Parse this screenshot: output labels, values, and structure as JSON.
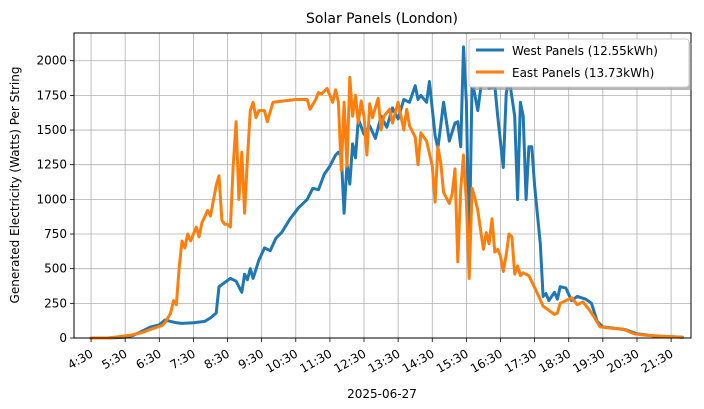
{
  "chart_data": {
    "type": "line",
    "title": "Solar Panels (London)",
    "xlabel": "2025-06-27",
    "ylabel": "Generated Electricity (Watts) Per String",
    "x_axis": {
      "kind": "time",
      "range": [
        "04:00",
        "22:05"
      ],
      "tick_labels": [
        "4:30",
        "5:30",
        "6:30",
        "7:30",
        "8:30",
        "9:30",
        "10:30",
        "11:30",
        "12:30",
        "13:30",
        "14:30",
        "15:30",
        "16:30",
        "17:30",
        "18:30",
        "19:30",
        "20:30",
        "21:30"
      ]
    },
    "ylim": [
      0,
      2200
    ],
    "y_ticks": [
      0,
      250,
      500,
      750,
      1000,
      1250,
      1500,
      1750,
      2000
    ],
    "grid": true,
    "legend_position": "top-right",
    "series": [
      {
        "name": "West Panels (12.55kWh)",
        "color": "#1f77b4",
        "points": [
          [
            "04:30",
            0
          ],
          [
            "05:00",
            0
          ],
          [
            "05:30",
            5
          ],
          [
            "05:45",
            20
          ],
          [
            "06:00",
            50
          ],
          [
            "06:15",
            80
          ],
          [
            "06:30",
            95
          ],
          [
            "06:40",
            130
          ],
          [
            "06:50",
            120
          ],
          [
            "07:00",
            110
          ],
          [
            "07:10",
            105
          ],
          [
            "07:30",
            110
          ],
          [
            "07:50",
            120
          ],
          [
            "08:00",
            145
          ],
          [
            "08:10",
            180
          ],
          [
            "08:15",
            370
          ],
          [
            "08:25",
            400
          ],
          [
            "08:35",
            430
          ],
          [
            "08:45",
            410
          ],
          [
            "08:55",
            330
          ],
          [
            "09:00",
            460
          ],
          [
            "09:05",
            420
          ],
          [
            "09:10",
            500
          ],
          [
            "09:15",
            430
          ],
          [
            "09:25",
            560
          ],
          [
            "09:35",
            650
          ],
          [
            "09:45",
            630
          ],
          [
            "09:55",
            720
          ],
          [
            "10:05",
            760
          ],
          [
            "10:20",
            860
          ],
          [
            "10:35",
            940
          ],
          [
            "10:50",
            1000
          ],
          [
            "11:00",
            1080
          ],
          [
            "11:10",
            1070
          ],
          [
            "11:20",
            1180
          ],
          [
            "11:30",
            1240
          ],
          [
            "11:40",
            1320
          ],
          [
            "11:45",
            1340
          ],
          [
            "11:50",
            1310
          ],
          [
            "11:55",
            900
          ],
          [
            "12:00",
            1260
          ],
          [
            "12:05",
            1110
          ],
          [
            "12:10",
            1400
          ],
          [
            "12:15",
            1300
          ],
          [
            "12:20",
            1580
          ],
          [
            "12:30",
            1470
          ],
          [
            "12:40",
            1530
          ],
          [
            "12:50",
            1440
          ],
          [
            "13:00",
            1600
          ],
          [
            "13:10",
            1520
          ],
          [
            "13:20",
            1660
          ],
          [
            "13:30",
            1580
          ],
          [
            "13:40",
            1720
          ],
          [
            "13:50",
            1700
          ],
          [
            "14:00",
            1820
          ],
          [
            "14:05",
            1720
          ],
          [
            "14:10",
            1750
          ],
          [
            "14:20",
            1700
          ],
          [
            "14:25",
            1850
          ],
          [
            "14:35",
            1460
          ],
          [
            "14:40",
            1370
          ],
          [
            "14:50",
            1700
          ],
          [
            "15:00",
            1420
          ],
          [
            "15:10",
            1550
          ],
          [
            "15:15",
            1560
          ],
          [
            "15:20",
            1380
          ],
          [
            "15:25",
            2100
          ],
          [
            "15:30",
            1700
          ],
          [
            "15:35",
            600
          ],
          [
            "15:40",
            1860
          ],
          [
            "15:50",
            1640
          ],
          [
            "16:00",
            1950
          ],
          [
            "16:10",
            1800
          ],
          [
            "16:20",
            1820
          ],
          [
            "16:25",
            1600
          ],
          [
            "16:35",
            1230
          ],
          [
            "16:40",
            1760
          ],
          [
            "16:45",
            1880
          ],
          [
            "16:55",
            1600
          ],
          [
            "17:00",
            1000
          ],
          [
            "17:05",
            1700
          ],
          [
            "17:10",
            1600
          ],
          [
            "17:15",
            1000
          ],
          [
            "17:20",
            1380
          ],
          [
            "17:25",
            1380
          ],
          [
            "17:30",
            1100
          ],
          [
            "17:40",
            680
          ],
          [
            "17:45",
            300
          ],
          [
            "17:50",
            320
          ],
          [
            "17:55",
            270
          ],
          [
            "18:05",
            330
          ],
          [
            "18:10",
            280
          ],
          [
            "18:15",
            370
          ],
          [
            "18:25",
            360
          ],
          [
            "18:35",
            270
          ],
          [
            "18:45",
            300
          ],
          [
            "19:00",
            280
          ],
          [
            "19:10",
            250
          ],
          [
            "19:20",
            120
          ],
          [
            "19:30",
            80
          ],
          [
            "19:50",
            70
          ],
          [
            "20:10",
            60
          ],
          [
            "20:30",
            30
          ],
          [
            "20:50",
            20
          ],
          [
            "21:10",
            10
          ],
          [
            "21:30",
            10
          ],
          [
            "21:50",
            5
          ]
        ]
      },
      {
        "name": "East Panels (13.73kWh)",
        "color": "#ff7f0e",
        "points": [
          [
            "04:30",
            0
          ],
          [
            "05:00",
            0
          ],
          [
            "05:20",
            10
          ],
          [
            "05:40",
            20
          ],
          [
            "06:00",
            40
          ],
          [
            "06:20",
            70
          ],
          [
            "06:35",
            90
          ],
          [
            "06:40",
            110
          ],
          [
            "06:50",
            180
          ],
          [
            "06:55",
            270
          ],
          [
            "07:00",
            240
          ],
          [
            "07:05",
            510
          ],
          [
            "07:10",
            700
          ],
          [
            "07:15",
            650
          ],
          [
            "07:20",
            750
          ],
          [
            "07:25",
            700
          ],
          [
            "07:35",
            800
          ],
          [
            "07:40",
            730
          ],
          [
            "07:45",
            830
          ],
          [
            "07:55",
            920
          ],
          [
            "08:00",
            880
          ],
          [
            "08:10",
            1100
          ],
          [
            "08:15",
            1170
          ],
          [
            "08:20",
            850
          ],
          [
            "08:25",
            820
          ],
          [
            "08:30",
            820
          ],
          [
            "08:35",
            800
          ],
          [
            "08:40",
            1240
          ],
          [
            "08:45",
            1560
          ],
          [
            "08:50",
            1000
          ],
          [
            "08:55",
            1340
          ],
          [
            "09:00",
            900
          ],
          [
            "09:05",
            1290
          ],
          [
            "09:10",
            1640
          ],
          [
            "09:15",
            1700
          ],
          [
            "09:20",
            1590
          ],
          [
            "09:25",
            1640
          ],
          [
            "09:35",
            1640
          ],
          [
            "09:40",
            1560
          ],
          [
            "09:50",
            1700
          ],
          [
            "10:10",
            1710
          ],
          [
            "10:30",
            1720
          ],
          [
            "10:50",
            1720
          ],
          [
            "10:55",
            1650
          ],
          [
            "11:05",
            1720
          ],
          [
            "11:10",
            1770
          ],
          [
            "11:15",
            1760
          ],
          [
            "11:25",
            1800
          ],
          [
            "11:35",
            1700
          ],
          [
            "11:40",
            1790
          ],
          [
            "11:45",
            1700
          ],
          [
            "11:50",
            1210
          ],
          [
            "11:55",
            1700
          ],
          [
            "12:00",
            1240
          ],
          [
            "12:05",
            1880
          ],
          [
            "12:10",
            1600
          ],
          [
            "12:15",
            1750
          ],
          [
            "12:20",
            1550
          ],
          [
            "12:25",
            1710
          ],
          [
            "12:30",
            1600
          ],
          [
            "12:35",
            1320
          ],
          [
            "12:40",
            1690
          ],
          [
            "12:45",
            1590
          ],
          [
            "12:55",
            1730
          ],
          [
            "13:00",
            1500
          ],
          [
            "13:05",
            1600
          ],
          [
            "13:15",
            1650
          ],
          [
            "13:20",
            1550
          ],
          [
            "13:30",
            1700
          ],
          [
            "13:40",
            1500
          ],
          [
            "13:45",
            1650
          ],
          [
            "13:50",
            1530
          ],
          [
            "14:00",
            1450
          ],
          [
            "14:05",
            1250
          ],
          [
            "14:10",
            1480
          ],
          [
            "14:20",
            1420
          ],
          [
            "14:30",
            1240
          ],
          [
            "14:35",
            980
          ],
          [
            "14:40",
            1380
          ],
          [
            "14:45",
            1260
          ],
          [
            "14:50",
            1050
          ],
          [
            "15:00",
            970
          ],
          [
            "15:05",
            1040
          ],
          [
            "15:10",
            1220
          ],
          [
            "15:15",
            550
          ],
          [
            "15:20",
            1070
          ],
          [
            "15:25",
            1320
          ],
          [
            "15:30",
            980
          ],
          [
            "15:35",
            430
          ],
          [
            "15:40",
            1080
          ],
          [
            "15:45",
            1010
          ],
          [
            "15:50",
            920
          ],
          [
            "16:00",
            640
          ],
          [
            "16:05",
            760
          ],
          [
            "16:10",
            680
          ],
          [
            "16:15",
            860
          ],
          [
            "16:20",
            620
          ],
          [
            "16:25",
            640
          ],
          [
            "16:30",
            590
          ],
          [
            "16:35",
            480
          ],
          [
            "16:40",
            600
          ],
          [
            "16:45",
            750
          ],
          [
            "16:50",
            730
          ],
          [
            "16:55",
            460
          ],
          [
            "17:00",
            520
          ],
          [
            "17:05",
            450
          ],
          [
            "17:10",
            470
          ],
          [
            "17:20",
            450
          ],
          [
            "17:35",
            320
          ],
          [
            "17:45",
            230
          ],
          [
            "17:55",
            200
          ],
          [
            "18:05",
            170
          ],
          [
            "18:10",
            180
          ],
          [
            "18:15",
            250
          ],
          [
            "18:25",
            270
          ],
          [
            "18:35",
            290
          ],
          [
            "18:45",
            240
          ],
          [
            "18:55",
            260
          ],
          [
            "19:05",
            210
          ],
          [
            "19:15",
            150
          ],
          [
            "19:25",
            80
          ],
          [
            "19:45",
            70
          ],
          [
            "20:05",
            65
          ],
          [
            "20:25",
            30
          ],
          [
            "20:45",
            20
          ],
          [
            "21:05",
            15
          ],
          [
            "21:25",
            10
          ],
          [
            "21:50",
            5
          ]
        ]
      }
    ]
  }
}
